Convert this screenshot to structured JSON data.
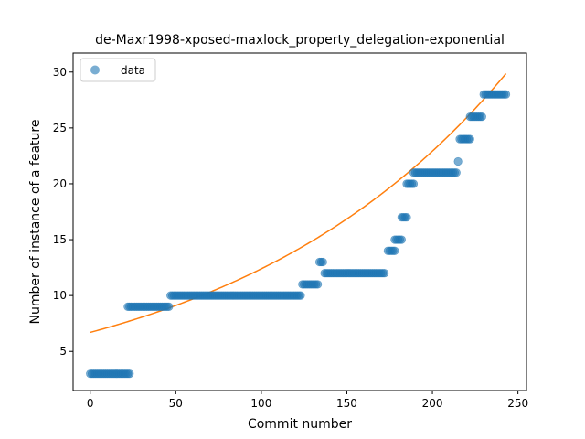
{
  "chart_data": {
    "type": "scatter",
    "title": "de-Maxr1998-xposed-maxlock_property_delegation-exponential",
    "xlabel": "Commit number",
    "ylabel": "Number of instance of a feature",
    "xlim": [
      -10,
      255
    ],
    "ylim": [
      1.5,
      31.7
    ],
    "xticks": [
      0,
      50,
      100,
      150,
      200,
      250
    ],
    "yticks": [
      5,
      10,
      15,
      20,
      25,
      30
    ],
    "grid": false,
    "legend": {
      "position": "top-left",
      "entries": [
        "data"
      ]
    },
    "colors": {
      "data": "#1f77b4",
      "fit": "#ff7f0e"
    },
    "series": [
      {
        "name": "data",
        "kind": "scatter",
        "segments": [
          {
            "x_start": 0,
            "x_end": 23,
            "y": 3
          },
          {
            "x_start": 22,
            "x_end": 46,
            "y": 9
          },
          {
            "x_start": 47,
            "x_end": 123,
            "y": 10
          },
          {
            "x_start": 124,
            "x_end": 133,
            "y": 11
          },
          {
            "x_start": 134,
            "x_end": 136,
            "y": 13
          },
          {
            "x_start": 137,
            "x_end": 172,
            "y": 12
          },
          {
            "x_start": 174,
            "x_end": 178,
            "y": 14
          },
          {
            "x_start": 178,
            "x_end": 182,
            "y": 15
          },
          {
            "x_start": 182,
            "x_end": 185,
            "y": 17
          },
          {
            "x_start": 185,
            "x_end": 189,
            "y": 20
          },
          {
            "x_start": 189,
            "x_end": 214,
            "y": 21
          },
          {
            "x_start": 215,
            "x_end": 215,
            "y": 22
          },
          {
            "x_start": 216,
            "x_end": 222,
            "y": 24
          },
          {
            "x_start": 222,
            "x_end": 229,
            "y": 26
          },
          {
            "x_start": 230,
            "x_end": 243,
            "y": 28
          }
        ]
      },
      {
        "name": "exponential fit",
        "kind": "line",
        "model": "y = a * exp(b * x)",
        "a": 6.7,
        "b": 0.00615,
        "x_range": [
          0,
          243
        ]
      }
    ]
  }
}
